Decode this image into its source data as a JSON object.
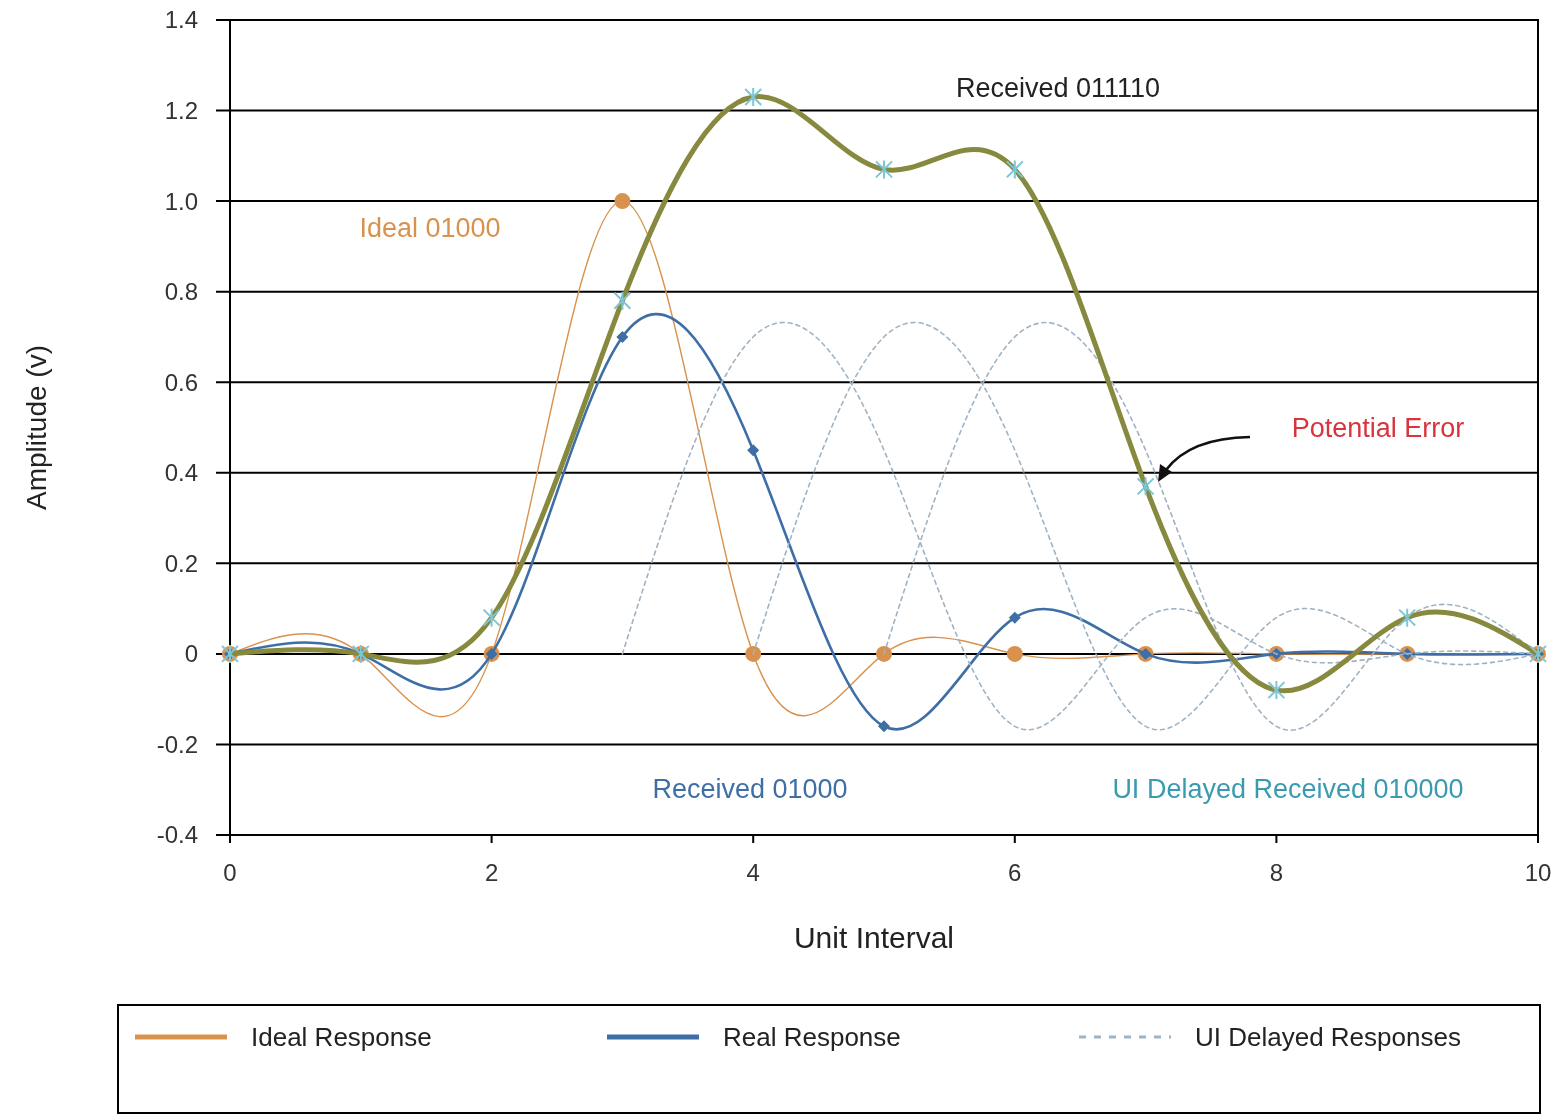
{
  "chart_data": {
    "type": "line",
    "xlabel": "Unit Interval",
    "ylabel": "Amplitude (v)",
    "x": [
      0,
      1,
      2,
      3,
      4,
      5,
      6,
      7,
      8,
      9,
      10
    ],
    "series": [
      {
        "name": "Ideal Response",
        "color": "#d9924e",
        "marker": "circle",
        "line_style": "solid",
        "values": [
          0,
          0,
          0,
          1.0,
          0,
          0,
          0,
          0,
          0,
          0,
          0
        ]
      },
      {
        "name": "Real Response",
        "color": "#3e6ea6",
        "marker": "diamond",
        "line_style": "solid",
        "values": [
          0,
          0,
          0,
          0.7,
          0.45,
          -0.16,
          0.08,
          0,
          0,
          0,
          0
        ]
      },
      {
        "name": "UI Delayed Responses",
        "color": "#9fb3c3",
        "marker": "none",
        "line_style": "dotted",
        "x": [
          3,
          4,
          5,
          6,
          7,
          8,
          9,
          10
        ],
        "values": [
          0,
          0.7,
          0.45,
          -0.16,
          0.08,
          0,
          0,
          0
        ]
      },
      {
        "color": "#9fb3c3",
        "marker": "none",
        "line_style": "dotted",
        "x": [
          4,
          5,
          6,
          7,
          8,
          9,
          10
        ],
        "values": [
          0,
          0.7,
          0.45,
          -0.16,
          0.08,
          0,
          0
        ]
      },
      {
        "color": "#9fb3c3",
        "marker": "none",
        "line_style": "dotted",
        "x": [
          5,
          6,
          7,
          8,
          9,
          10
        ],
        "values": [
          0,
          0.7,
          0.45,
          -0.16,
          0.08,
          0
        ]
      },
      {
        "color": "#86893e",
        "marker": "cross",
        "line_style": "solid",
        "values": [
          0,
          0,
          0.08,
          0.78,
          1.23,
          1.07,
          1.07,
          0.37,
          -0.08,
          0.08,
          0
        ]
      }
    ],
    "xlim": [
      0,
      10
    ],
    "xticks": [
      0,
      2,
      4,
      6,
      8,
      10
    ],
    "ylim": [
      -0.4,
      1.4
    ],
    "yticks": [
      -0.4,
      -0.2,
      0,
      0.2,
      0.4,
      0.6,
      0.8,
      {
        "value": 1,
        "label": "1.0"
      },
      1.2,
      1.4
    ],
    "grid": "y",
    "legend": "bottom",
    "annotations": [
      "Ideal 01000",
      "Received 011110",
      "Received 01000",
      "UI Delayed Received 010000",
      "Potential Error"
    ]
  }
}
